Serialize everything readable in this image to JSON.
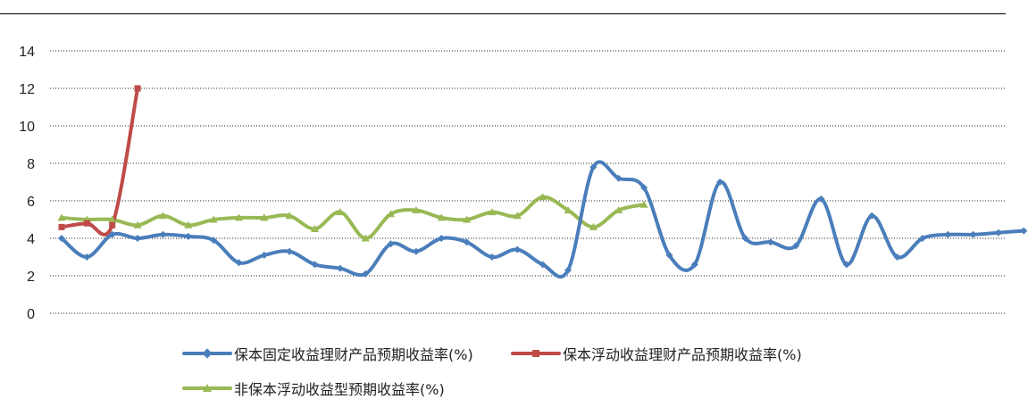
{
  "chart_data": {
    "type": "line",
    "ylim": [
      0,
      14
    ],
    "yticks": [
      "0",
      "2",
      "4",
      "6",
      "8",
      "10",
      "12",
      "14"
    ],
    "grid": true,
    "legend_position": "bottom",
    "series": [
      {
        "name": "保本固定收益理财产品预期收益率(%)",
        "color": "#4a7ebb",
        "marker": "diamond",
        "x": [
          0,
          1,
          2,
          3,
          4,
          5,
          6,
          7,
          8,
          9,
          10,
          11,
          12,
          13,
          14,
          15,
          16,
          17,
          18,
          19,
          20,
          21,
          22,
          23,
          24,
          25,
          26,
          27,
          28,
          29,
          30,
          31,
          32,
          33,
          34,
          35,
          36,
          37,
          38,
          39
        ],
        "values": [
          4.0,
          3.0,
          4.2,
          4.0,
          4.2,
          4.1,
          3.9,
          2.7,
          3.1,
          3.3,
          2.6,
          2.4,
          2.1,
          3.7,
          3.3,
          4.0,
          3.8,
          3.0,
          3.4,
          2.6,
          2.3,
          7.8,
          7.2,
          6.7,
          3.1,
          2.6,
          7.0,
          4.0,
          3.8,
          3.6,
          6.1,
          2.6,
          5.2,
          3.0,
          4.0,
          4.2,
          4.2,
          4.3,
          4.4,
          null
        ]
      },
      {
        "name": "保本浮动收益理财产品预期收益率(%)",
        "color": "#be4b48",
        "marker": "square",
        "x": [
          0,
          1,
          2,
          3
        ],
        "values": [
          4.6,
          4.8,
          4.7,
          12.0
        ]
      },
      {
        "name": "非保本浮动收益型预期收益率(%)",
        "color": "#98b954",
        "marker": "triangle",
        "x": [
          0,
          1,
          2,
          3,
          4,
          5,
          6,
          7,
          8,
          9,
          10,
          11,
          12,
          13,
          14,
          15,
          16,
          17,
          18,
          19,
          20,
          21,
          22,
          23
        ],
        "values": [
          5.1,
          5.0,
          5.0,
          4.7,
          5.2,
          4.7,
          5.0,
          5.1,
          5.1,
          5.2,
          4.5,
          5.4,
          4.0,
          5.3,
          5.5,
          5.1,
          5.0,
          5.4,
          5.2,
          6.2,
          5.5,
          4.6,
          5.5,
          5.8
        ]
      }
    ]
  }
}
